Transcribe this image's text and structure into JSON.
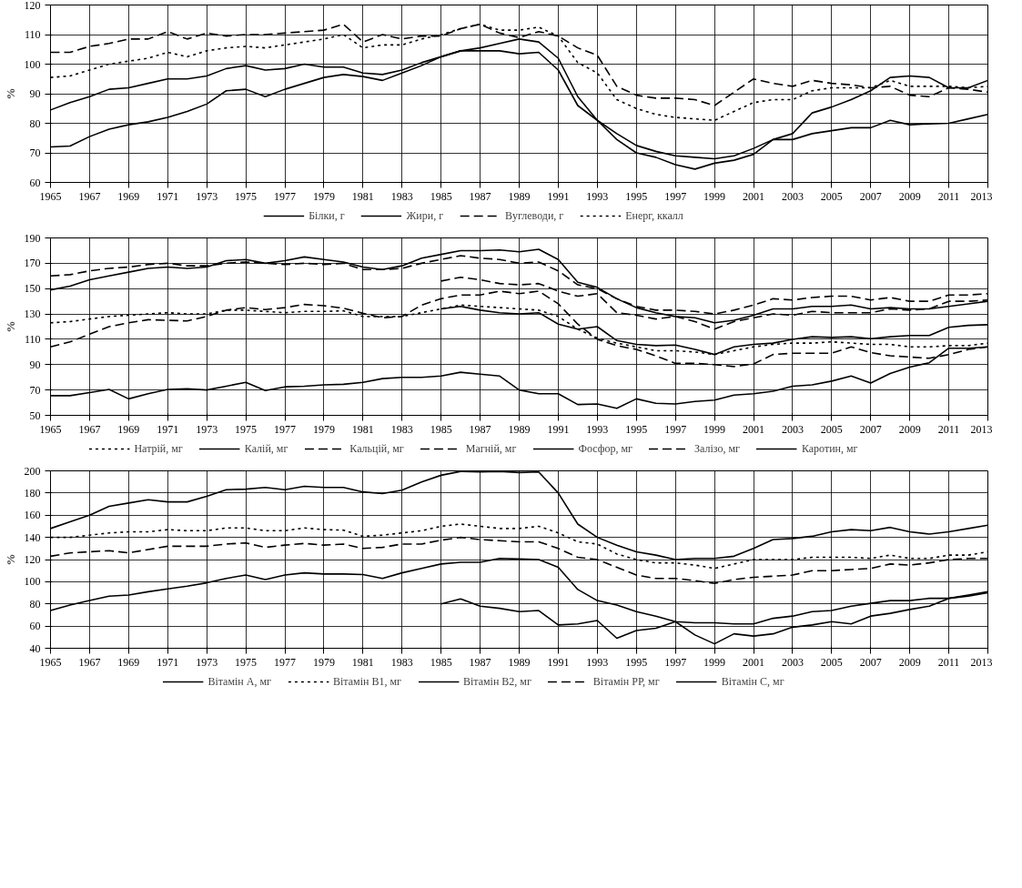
{
  "chart_data": [
    {
      "type": "line",
      "ylabel": "%",
      "x": [
        1965,
        1966,
        1967,
        1968,
        1969,
        1970,
        1971,
        1972,
        1973,
        1974,
        1975,
        1976,
        1977,
        1978,
        1979,
        1980,
        1981,
        1982,
        1983,
        1984,
        1985,
        1986,
        1987,
        1988,
        1989,
        1990,
        1991,
        1992,
        1993,
        1994,
        1995,
        1996,
        1997,
        1998,
        1999,
        2000,
        2001,
        2002,
        2003,
        2004,
        2005,
        2006,
        2007,
        2008,
        2009,
        2010,
        2011,
        2012,
        2013
      ],
      "xlim": [
        1965,
        2013
      ],
      "xticks": [
        1965,
        1967,
        1969,
        1971,
        1973,
        1975,
        1977,
        1979,
        1981,
        1983,
        1985,
        1987,
        1989,
        1991,
        1993,
        1995,
        1997,
        1999,
        2001,
        2003,
        2005,
        2007,
        2009,
        2011,
        2013
      ],
      "ylim": [
        60,
        120
      ],
      "yticks": [
        60,
        70,
        80,
        90,
        100,
        110,
        120
      ],
      "grid": true,
      "legend": "bottom",
      "series": [
        {
          "name": "Білки, г",
          "color": "#000000",
          "line_style": "solid",
          "values": [
            84.5,
            87,
            89,
            91.5,
            92,
            93.5,
            95,
            95,
            96,
            98.5,
            99.5,
            98,
            98.5,
            100,
            99,
            99,
            97,
            96.5,
            98,
            100.5,
            102.5,
            104.5,
            104.5,
            104.5,
            103.5,
            104,
            98,
            86,
            81,
            76.5,
            72.5,
            70.5,
            69,
            68.5,
            68,
            69,
            71.5,
            74.5,
            74.5,
            76.5,
            77.5,
            78.5,
            78.5,
            81,
            79.5,
            79.8,
            80,
            81.5,
            83
          ]
        },
        {
          "name": "Жири, г",
          "color": "#000000",
          "line_style": "solid",
          "values": [
            72,
            72.3,
            75.5,
            78,
            79.5,
            80.5,
            82,
            84,
            86.5,
            91,
            91.5,
            89,
            91.5,
            93.5,
            95.5,
            96.5,
            95.8,
            94.5,
            97,
            99.5,
            102.5,
            104.5,
            105.5,
            107,
            108.5,
            107.5,
            102,
            89,
            81,
            74.5,
            70,
            68.5,
            66,
            64.5,
            66.5,
            67.5,
            69.5,
            74.5,
            76.5,
            83.5,
            85.5,
            88,
            91,
            95.5,
            96,
            95.5,
            92,
            92,
            94.5
          ]
        },
        {
          "name": "Вуглеводи, г",
          "color": "#000000",
          "line_style": "dashed",
          "values": [
            104,
            104,
            106,
            107,
            108.5,
            108.5,
            111,
            108.5,
            110.5,
            109.5,
            110,
            110,
            110.5,
            111,
            111.5,
            113.5,
            107.5,
            110,
            108.5,
            109.5,
            109.5,
            112,
            113.5,
            110.5,
            109,
            111,
            109.5,
            105.5,
            103,
            92.5,
            89.5,
            88.5,
            88.5,
            88,
            86,
            90.5,
            95,
            93.5,
            92.5,
            94.5,
            93.5,
            93,
            92,
            92.5,
            89.5,
            89,
            92,
            91.5,
            90.5
          ]
        },
        {
          "name": "Енерг, ккалл",
          "color": "#000000",
          "line_style": "dotted",
          "values": [
            95.5,
            96,
            98,
            100,
            101,
            102,
            104,
            102.5,
            104.5,
            105.5,
            106,
            105.5,
            106.5,
            107.5,
            108.5,
            110,
            105.5,
            106.5,
            106.5,
            108.5,
            110,
            112,
            113.5,
            111.5,
            111.5,
            112.5,
            109.5,
            100.5,
            97,
            88,
            85,
            83,
            82,
            81.5,
            81,
            84,
            87,
            88,
            88,
            91,
            92,
            92,
            92,
            94.5,
            92.5,
            92.5,
            92.5,
            92,
            92.5
          ]
        }
      ]
    },
    {
      "type": "line",
      "ylabel": "%",
      "x": [
        1965,
        1966,
        1967,
        1968,
        1969,
        1970,
        1971,
        1972,
        1973,
        1974,
        1975,
        1976,
        1977,
        1978,
        1979,
        1980,
        1981,
        1982,
        1983,
        1984,
        1985,
        1986,
        1987,
        1988,
        1989,
        1990,
        1991,
        1992,
        1993,
        1994,
        1995,
        1996,
        1997,
        1998,
        1999,
        2000,
        2001,
        2002,
        2003,
        2004,
        2005,
        2006,
        2007,
        2008,
        2009,
        2010,
        2011,
        2012,
        2013
      ],
      "xlim": [
        1965,
        2013
      ],
      "xticks": [
        1965,
        1967,
        1969,
        1971,
        1973,
        1975,
        1977,
        1979,
        1981,
        1983,
        1985,
        1987,
        1989,
        1991,
        1993,
        1995,
        1997,
        1999,
        2001,
        2003,
        2005,
        2007,
        2009,
        2011,
        2013
      ],
      "ylim": [
        50,
        190
      ],
      "yticks": [
        50,
        70,
        90,
        110,
        130,
        150,
        170,
        190
      ],
      "grid": true,
      "legend": "bottom",
      "series": [
        {
          "name": "Натрій, мг",
          "color": "#000000",
          "line_style": "dotted",
          "values": [
            123,
            124,
            126,
            128,
            129,
            130,
            131,
            130,
            130,
            133,
            133,
            132,
            131,
            132,
            132,
            132.5,
            128,
            128,
            128,
            131,
            134,
            137,
            136,
            135,
            134,
            133,
            128,
            118,
            111,
            107,
            104,
            101,
            101,
            100,
            98,
            101,
            104,
            106,
            107,
            107,
            108,
            107,
            106,
            106,
            104,
            104,
            105,
            105,
            107
          ]
        },
        {
          "name": "Калій, мг",
          "color": "#000000",
          "line_style": "solid",
          "values": [
            null,
            null,
            null,
            null,
            null,
            null,
            null,
            null,
            null,
            null,
            null,
            null,
            null,
            null,
            null,
            null,
            null,
            null,
            null,
            null,
            134,
            136,
            133,
            131,
            130,
            131,
            122,
            118,
            120,
            109,
            106,
            105,
            105.5,
            102,
            98,
            104,
            106,
            107,
            110,
            112,
            111.5,
            112,
            110.5,
            112,
            113,
            113,
            119.5,
            121,
            121.5
          ]
        },
        {
          "name": "Кальцій, мг",
          "color": "#000000",
          "line_style": "dashed",
          "values": [
            104,
            108,
            114,
            120,
            123,
            125.5,
            125,
            124.5,
            128,
            133,
            135,
            133.5,
            135,
            137.5,
            136.5,
            134.5,
            130.5,
            127,
            128,
            137,
            142,
            145,
            145,
            148,
            146,
            148,
            138,
            122,
            110,
            105,
            102,
            97,
            91,
            91,
            90,
            88.5,
            90.5,
            98,
            99,
            99,
            99,
            104,
            99.5,
            97,
            96,
            95,
            98,
            102,
            104
          ]
        },
        {
          "name": "Магній, мг",
          "color": "#000000",
          "line_style": "dashed",
          "values": [
            160,
            161,
            164,
            166,
            167,
            169,
            170,
            168,
            168,
            170,
            171,
            170,
            169,
            170,
            169,
            170,
            165,
            165,
            166,
            170,
            173,
            176,
            174,
            173,
            170,
            171,
            164,
            153,
            150,
            142,
            136,
            133,
            133,
            132,
            130,
            133,
            137,
            142,
            141,
            143,
            144,
            144,
            141,
            143,
            140,
            140,
            145,
            145,
            146
          ]
        },
        {
          "name": "Фосфор, мг",
          "color": "#000000",
          "line_style": "solid",
          "values": [
            149,
            152,
            157,
            160,
            163,
            166,
            167,
            166,
            167,
            172,
            173,
            170,
            172,
            175,
            173,
            171,
            167,
            165,
            168,
            174,
            177,
            180,
            180,
            180.5,
            179,
            181,
            173,
            155,
            151,
            142,
            135,
            131,
            128,
            127,
            123,
            125,
            129,
            134,
            134,
            136,
            136,
            137,
            134,
            135,
            134,
            134,
            136,
            138,
            140
          ]
        },
        {
          "name": "Залізо, мг",
          "color": "#000000",
          "line_style": "dashed",
          "values": [
            null,
            null,
            null,
            null,
            null,
            null,
            null,
            null,
            null,
            null,
            null,
            null,
            null,
            null,
            null,
            null,
            null,
            null,
            null,
            null,
            156,
            159,
            157,
            154,
            153,
            154,
            148,
            144,
            146,
            131,
            129,
            126,
            128,
            124,
            118,
            124,
            127,
            130,
            129,
            132,
            131,
            131,
            131,
            134,
            133,
            134,
            140,
            140,
            141
          ]
        },
        {
          "name": "Каротин, мг",
          "color": "#000000",
          "line_style": "solid",
          "values": [
            65.5,
            65.5,
            68,
            70.5,
            63,
            67,
            70.5,
            71,
            70,
            73,
            76,
            69.5,
            72.5,
            73,
            74,
            74.5,
            76,
            79,
            80,
            80,
            81,
            84,
            82.5,
            81,
            70,
            67,
            67,
            58.5,
            59,
            55.5,
            63,
            59.5,
            59,
            61,
            62,
            66,
            67,
            69,
            73,
            74,
            77,
            81,
            75.5,
            83,
            88,
            91.5,
            103,
            103,
            104
          ]
        }
      ]
    },
    {
      "type": "line",
      "ylabel": "%",
      "x": [
        1965,
        1966,
        1967,
        1968,
        1969,
        1970,
        1971,
        1972,
        1973,
        1974,
        1975,
        1976,
        1977,
        1978,
        1979,
        1980,
        1981,
        1982,
        1983,
        1984,
        1985,
        1986,
        1987,
        1988,
        1989,
        1990,
        1991,
        1992,
        1993,
        1994,
        1995,
        1996,
        1997,
        1998,
        1999,
        2000,
        2001,
        2002,
        2003,
        2004,
        2005,
        2006,
        2007,
        2008,
        2009,
        2010,
        2011,
        2012,
        2013
      ],
      "xlim": [
        1965,
        2013
      ],
      "xticks": [
        1965,
        1967,
        1969,
        1971,
        1973,
        1975,
        1977,
        1979,
        1981,
        1983,
        1985,
        1987,
        1989,
        1991,
        1993,
        1995,
        1997,
        1999,
        2001,
        2003,
        2005,
        2007,
        2009,
        2011,
        2013
      ],
      "ylim": [
        40,
        200
      ],
      "yticks": [
        40,
        60,
        80,
        100,
        120,
        140,
        160,
        180,
        200
      ],
      "grid": true,
      "legend": "bottom",
      "series": [
        {
          "name": "Вітамін А, мг",
          "color": "#000000",
          "line_style": "solid",
          "values": [
            74,
            79,
            83,
            87,
            88,
            91,
            93.5,
            96,
            99,
            103,
            106,
            102,
            106,
            108,
            107,
            107,
            106.5,
            103,
            108,
            112,
            116,
            117.5,
            117.5,
            121,
            120.5,
            120,
            113,
            93,
            83,
            79,
            73,
            69,
            64,
            63,
            63,
            62,
            62,
            67,
            69,
            73,
            74,
            78,
            80.5,
            83,
            83,
            85,
            85,
            88,
            91
          ]
        },
        {
          "name": "Вітамін В1, мг",
          "color": "#000000",
          "line_style": "dotted",
          "values": [
            140,
            140,
            142,
            144,
            145,
            145,
            147,
            146,
            146,
            148.5,
            148.5,
            146,
            146,
            148.5,
            147,
            146.5,
            141,
            142,
            144,
            146,
            150,
            152,
            150,
            148,
            148,
            150,
            144,
            136,
            134,
            125,
            120,
            117,
            117,
            115,
            112,
            116,
            120,
            120,
            120,
            122,
            122,
            122,
            121,
            124,
            121,
            121,
            124,
            124,
            127
          ]
        },
        {
          "name": "Вітамін В2, мг",
          "color": "#000000",
          "line_style": "solid",
          "values": [
            148,
            154,
            160,
            168,
            171,
            174,
            172,
            172,
            177,
            183,
            183.5,
            185,
            183,
            186,
            185,
            185,
            181,
            179.5,
            182.5,
            190,
            196,
            199.5,
            199,
            199.5,
            198.5,
            199,
            180,
            152,
            140,
            133,
            127,
            124,
            120,
            121,
            121,
            123,
            130,
            138,
            139,
            141,
            145,
            147,
            146,
            149,
            145,
            143,
            145,
            148,
            151
          ]
        },
        {
          "name": "Вітамін РР, мг",
          "color": "#000000",
          "line_style": "dashed",
          "values": [
            123,
            126,
            127,
            128,
            126,
            129,
            132,
            132,
            132,
            134,
            135,
            131,
            133,
            134.5,
            133,
            134,
            130,
            131,
            134,
            134,
            137.5,
            140,
            138,
            137,
            136,
            136,
            130,
            122,
            120,
            113,
            106,
            103,
            103,
            101,
            98.5,
            102,
            104,
            105,
            106,
            110,
            110,
            111,
            112,
            116,
            115,
            117,
            120,
            121,
            121
          ]
        },
        {
          "name": "Вітамін С, мг",
          "color": "#000000",
          "line_style": "solid",
          "values": [
            null,
            null,
            null,
            null,
            null,
            null,
            null,
            null,
            null,
            null,
            null,
            null,
            null,
            null,
            null,
            null,
            null,
            null,
            null,
            null,
            80,
            84.5,
            78,
            76,
            73,
            74,
            61,
            62,
            65,
            49,
            56,
            58,
            64,
            52,
            44,
            53,
            51,
            53,
            59,
            61,
            64,
            62,
            69,
            71.5,
            75,
            78,
            85,
            87,
            90
          ]
        }
      ]
    }
  ]
}
